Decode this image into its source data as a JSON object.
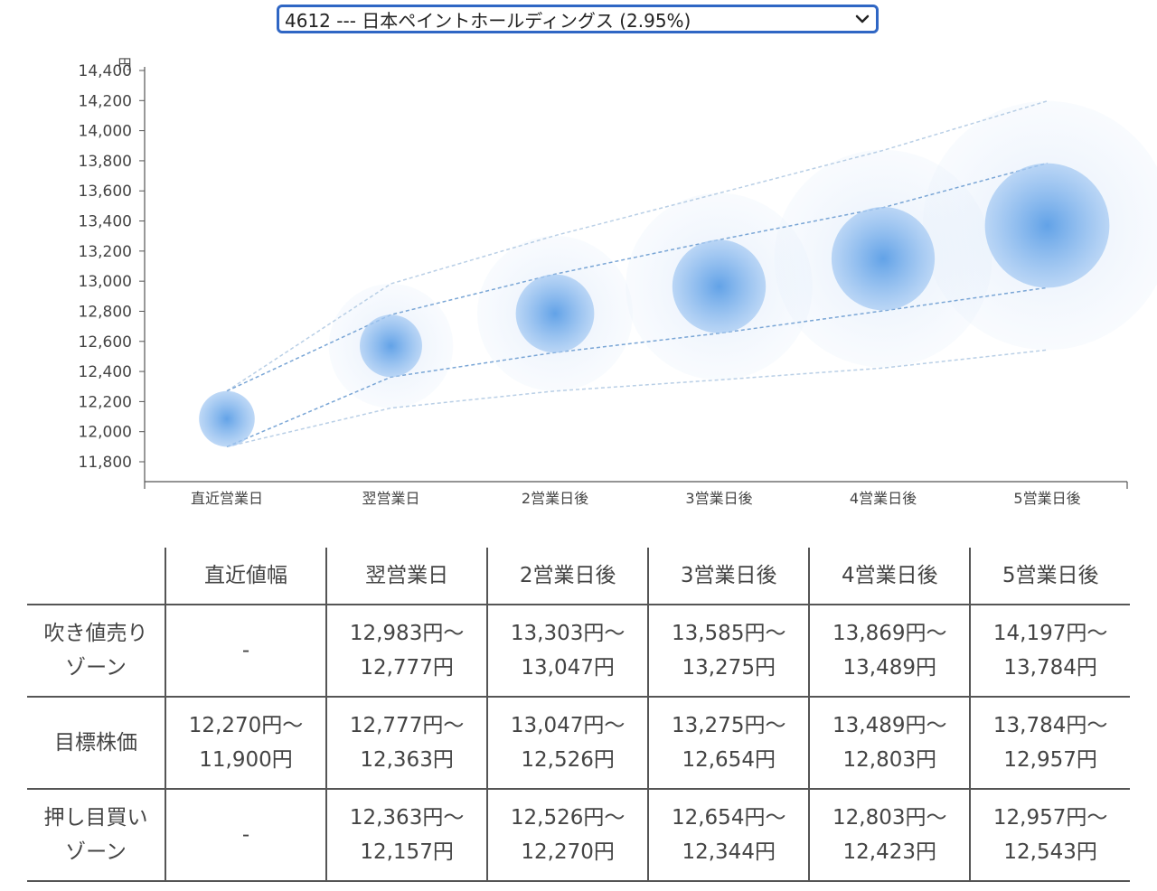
{
  "selector": {
    "value": "4612 --- 日本ペイントホールディングス (2.95%)",
    "icon": "chevron-down-icon"
  },
  "chart_data": {
    "type": "scatter",
    "y_unit": "円",
    "ylim": [
      11800,
      14400
    ],
    "yticks": [
      11800,
      12000,
      12200,
      12400,
      12600,
      12800,
      13000,
      13200,
      13400,
      13600,
      13800,
      14000,
      14200,
      14400
    ],
    "categories": [
      "直近営業日",
      "翌営業日",
      "2営業日後",
      "3営業日後",
      "4営業日後",
      "5営業日後"
    ],
    "center": [
      12085,
      12570,
      12785,
      12965,
      13150,
      13370
    ],
    "inner_upper": [
      12270,
      12777,
      13047,
      13275,
      13489,
      13784
    ],
    "inner_lower": [
      11900,
      12363,
      12526,
      12654,
      12803,
      12957
    ],
    "outer_upper": [
      12270,
      12983,
      13303,
      13585,
      13869,
      14197
    ],
    "outer_lower": [
      11900,
      12157,
      12270,
      12344,
      12423,
      12543
    ],
    "colors": {
      "bubble": "#5b9ee6",
      "halo": "#cfe1f8",
      "inner_line": "#7aa6d6",
      "outer_line": "#b9cfe6",
      "axis": "#555555"
    },
    "grid": false,
    "legend": "none"
  },
  "table": {
    "headers": [
      "",
      "直近値幅",
      "翌営業日",
      "2営業日後",
      "3営業日後",
      "4営業日後",
      "5営業日後"
    ],
    "rows": [
      {
        "label": [
          "吹き値売り",
          "ゾーン"
        ],
        "cells": [
          [
            "-"
          ],
          [
            "12,983円〜",
            "12,777円"
          ],
          [
            "13,303円〜",
            "13,047円"
          ],
          [
            "13,585円〜",
            "13,275円"
          ],
          [
            "13,869円〜",
            "13,489円"
          ],
          [
            "14,197円〜",
            "13,784円"
          ]
        ]
      },
      {
        "label": [
          "目標株価"
        ],
        "cells": [
          [
            "12,270円〜",
            "11,900円"
          ],
          [
            "12,777円〜",
            "12,363円"
          ],
          [
            "13,047円〜",
            "12,526円"
          ],
          [
            "13,275円〜",
            "12,654円"
          ],
          [
            "13,489円〜",
            "12,803円"
          ],
          [
            "13,784円〜",
            "12,957円"
          ]
        ]
      },
      {
        "label": [
          "押し目買い",
          "ゾーン"
        ],
        "cells": [
          [
            "-"
          ],
          [
            "12,363円〜",
            "12,157円"
          ],
          [
            "12,526円〜",
            "12,270円"
          ],
          [
            "12,654円〜",
            "12,344円"
          ],
          [
            "12,803円〜",
            "12,423円"
          ],
          [
            "12,957円〜",
            "12,543円"
          ]
        ]
      }
    ]
  }
}
